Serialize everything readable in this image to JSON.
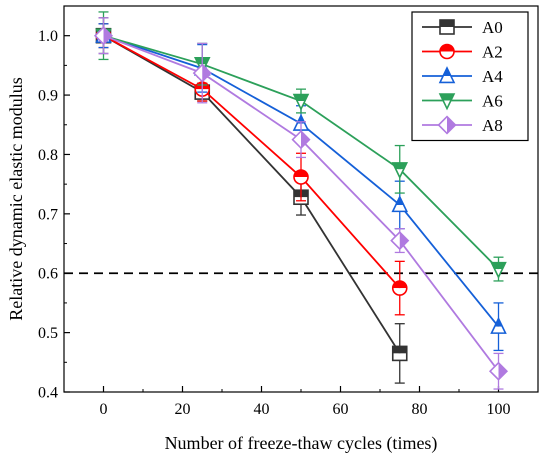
{
  "chart_data": {
    "type": "line",
    "xlabel": "Number of freeze-thaw cycles (times)",
    "ylabel": "Relative dynamic elastic modulus",
    "xlim": [
      -10,
      110
    ],
    "ylim": [
      0.4,
      1.05
    ],
    "x_ticks": [
      0,
      20,
      40,
      60,
      80,
      100
    ],
    "y_ticks": [
      0.4,
      0.5,
      0.6,
      0.7,
      0.8,
      0.9,
      1.0
    ],
    "x_tick_labels": [
      "0",
      "20",
      "40",
      "60",
      "80",
      "100"
    ],
    "y_tick_labels": [
      "0.4",
      "0.5",
      "0.6",
      "0.7",
      "0.8",
      "0.9",
      "1.0"
    ],
    "reference_line": {
      "y": 0.6,
      "style": "dashed"
    },
    "grid": false,
    "legend_position": "top-right",
    "series": [
      {
        "name": "A0",
        "marker": "square",
        "color": "#333333",
        "x": [
          0,
          25,
          50,
          75
        ],
        "y": [
          1.0,
          0.905,
          0.728,
          0.465
        ],
        "err": [
          0.03,
          0.015,
          0.03,
          0.05
        ]
      },
      {
        "name": "A2",
        "marker": "circle",
        "color": "#ff0000",
        "x": [
          0,
          25,
          50,
          75
        ],
        "y": [
          1.0,
          0.91,
          0.762,
          0.575
        ],
        "err": [
          0.02,
          0.02,
          0.04,
          0.045
        ]
      },
      {
        "name": "A4",
        "marker": "triangle-up",
        "color": "#1560d8",
        "x": [
          0,
          25,
          50,
          75,
          100
        ],
        "y": [
          1.0,
          0.945,
          0.852,
          0.715,
          0.51
        ],
        "err": [
          0.02,
          0.04,
          0.03,
          0.04,
          0.04
        ]
      },
      {
        "name": "A6",
        "marker": "triangle-down",
        "color": "#2ca05a",
        "x": [
          0,
          25,
          50,
          75,
          100
        ],
        "y": [
          1.0,
          0.952,
          0.89,
          0.775,
          0.607
        ],
        "err": [
          0.04,
          0.035,
          0.02,
          0.04,
          0.02
        ]
      },
      {
        "name": "A8",
        "marker": "diamond",
        "color": "#b07ae0",
        "x": [
          0,
          25,
          50,
          75,
          100
        ],
        "y": [
          1.0,
          0.937,
          0.825,
          0.655,
          0.435
        ],
        "err": [
          0.03,
          0.05,
          0.03,
          0.02,
          0.03
        ]
      }
    ]
  }
}
